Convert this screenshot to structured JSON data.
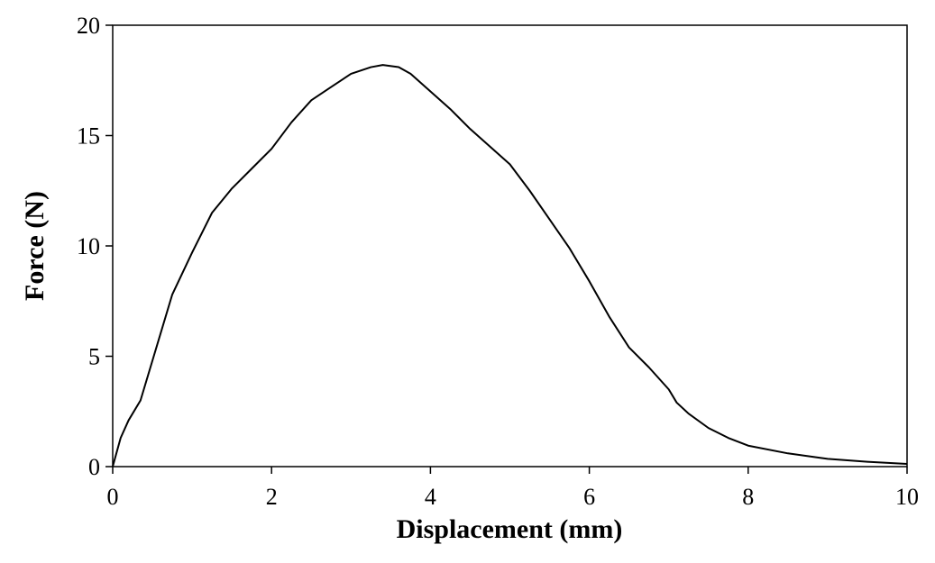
{
  "chart_data": {
    "type": "line",
    "xlabel": "Displacement (mm)",
    "ylabel": "Force (N)",
    "x": [
      0,
      0.1,
      0.2,
      0.35,
      0.5,
      0.75,
      1.0,
      1.25,
      1.5,
      1.75,
      2.0,
      2.25,
      2.5,
      2.75,
      3.0,
      3.25,
      3.4,
      3.6,
      3.75,
      4.0,
      4.25,
      4.5,
      4.75,
      5.0,
      5.25,
      5.5,
      5.75,
      6.0,
      6.25,
      6.5,
      6.75,
      7.0,
      7.1,
      7.25,
      7.5,
      7.75,
      8.0,
      8.5,
      9.0,
      9.5,
      10.0
    ],
    "series": [
      {
        "name": "Force",
        "color": "#000000",
        "values": [
          0,
          1.3,
          2.1,
          3.0,
          4.8,
          7.8,
          9.7,
          11.5,
          12.6,
          13.5,
          14.4,
          15.6,
          16.6,
          17.2,
          17.8,
          18.1,
          18.2,
          18.1,
          17.8,
          17.0,
          16.2,
          15.3,
          14.5,
          13.7,
          12.5,
          11.2,
          9.9,
          8.4,
          6.8,
          5.4,
          4.5,
          3.5,
          2.9,
          2.4,
          1.75,
          1.3,
          0.95,
          0.6,
          0.35,
          0.22,
          0.12
        ]
      }
    ],
    "xlim": [
      0,
      10
    ],
    "xticks": [
      0,
      2,
      4,
      6,
      8,
      10
    ],
    "ylim": [
      0,
      20
    ],
    "yticks": [
      0,
      5,
      10,
      15,
      20
    ]
  }
}
